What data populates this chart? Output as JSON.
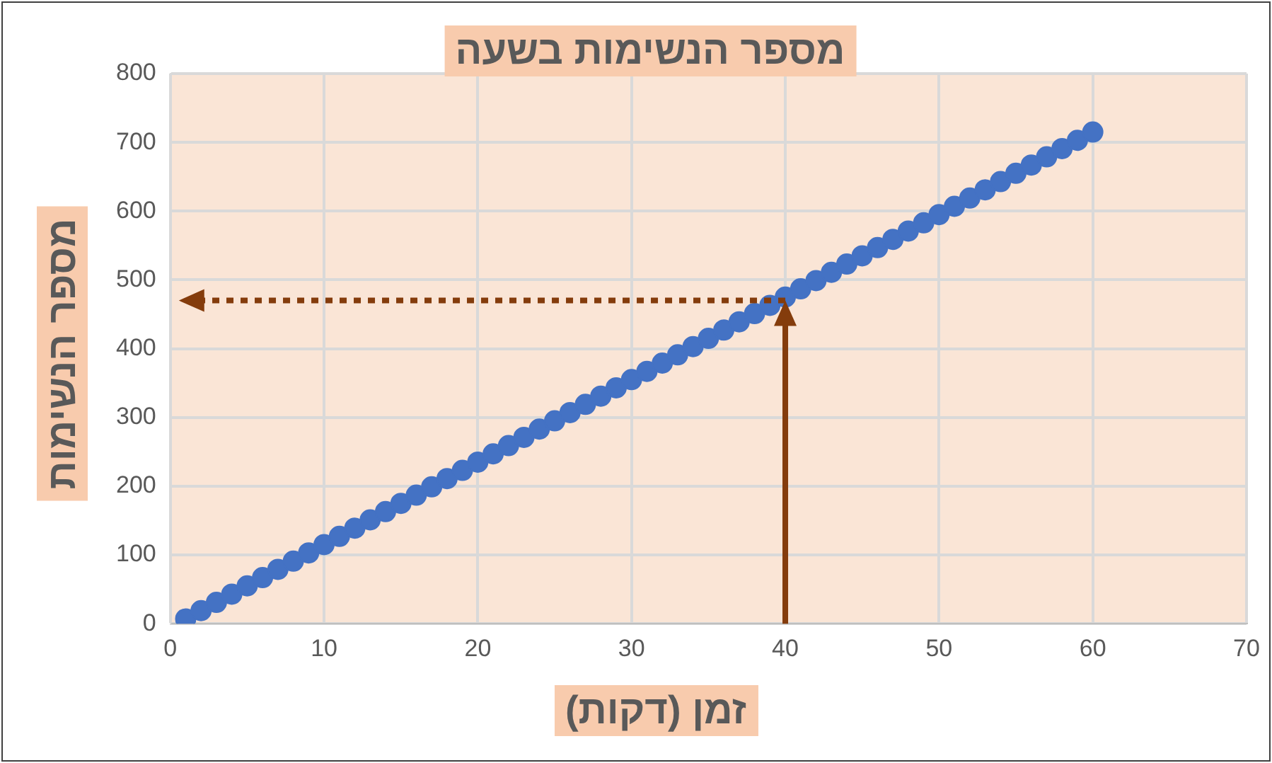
{
  "chart_data": {
    "type": "scatter",
    "title": "מספר הנשימות בשעה",
    "xlabel": "זמן (דקות)",
    "ylabel": "מספר הנשימות",
    "x": [
      1,
      2,
      3,
      4,
      5,
      6,
      7,
      8,
      9,
      10,
      11,
      12,
      13,
      14,
      15,
      16,
      17,
      18,
      19,
      20,
      21,
      22,
      23,
      24,
      25,
      26,
      27,
      28,
      29,
      30,
      31,
      32,
      33,
      34,
      35,
      36,
      37,
      38,
      39,
      40,
      41,
      42,
      43,
      44,
      45,
      46,
      47,
      48,
      49,
      50,
      51,
      52,
      53,
      54,
      55,
      56,
      57,
      58,
      59,
      60
    ],
    "values": [
      7,
      19,
      31,
      43,
      55,
      67,
      79,
      91,
      103,
      115,
      127,
      139,
      151,
      163,
      175,
      187,
      199,
      211,
      223,
      235,
      247,
      259,
      271,
      283,
      295,
      307,
      319,
      331,
      343,
      355,
      367,
      379,
      391,
      403,
      415,
      427,
      439,
      451,
      463,
      475,
      487,
      499,
      511,
      523,
      535,
      547,
      559,
      571,
      583,
      595,
      607,
      619,
      631,
      643,
      655,
      667,
      679,
      691,
      703,
      715
    ],
    "color": "#4472c4",
    "marker": "circle",
    "xlim": [
      0,
      70
    ],
    "xticks": [
      0,
      10,
      20,
      30,
      40,
      50,
      60,
      70
    ],
    "ylim": [
      0,
      800
    ],
    "yticks": [
      0,
      100,
      200,
      300,
      400,
      500,
      600,
      700,
      800
    ],
    "grid": true,
    "ref_lines": [
      {
        "axis": "x",
        "value": 40,
        "color": "#843c0c",
        "line_style": "solid"
      },
      {
        "axis": "y",
        "value": 470,
        "color": "#843c0c",
        "line_style": "dotted"
      }
    ]
  }
}
